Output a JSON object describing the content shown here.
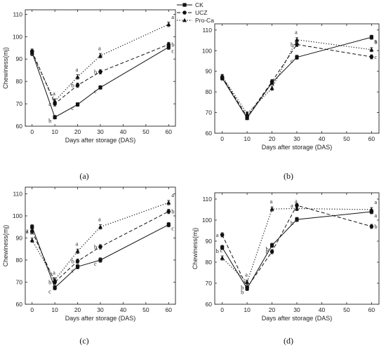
{
  "legend": [
    {
      "name": "CK",
      "dash": "solid",
      "marker": "square"
    },
    {
      "name": "UCZ",
      "dash": "dashed",
      "marker": "circle"
    },
    {
      "name": "Pro-Ca",
      "dash": "dotted",
      "marker": "triangle"
    }
  ],
  "chart_data": [
    {
      "panel_label": "(a)",
      "type": "line",
      "xlabel": "Days after storage (DAS)",
      "ylabel": "Chewiness(mj)",
      "xlim": [
        -3,
        63
      ],
      "ylim": [
        60,
        112
      ],
      "xticks": [
        0,
        10,
        20,
        30,
        40,
        50,
        60
      ],
      "yticks": [
        60,
        70,
        80,
        90,
        100,
        110
      ],
      "x": [
        0,
        10,
        20,
        30,
        60
      ],
      "series": [
        {
          "name": "CK",
          "values": [
            93.0,
            64.0,
            69.7,
            77.3,
            95.3
          ],
          "errors": [
            1.0,
            0.8,
            0.8,
            0.8,
            1.0
          ],
          "letters": [
            "",
            "b",
            "c",
            "c",
            "c"
          ]
        },
        {
          "name": "UCZ",
          "values": [
            93.5,
            70.0,
            78.3,
            84.3,
            96.5
          ],
          "errors": [
            1.0,
            1.0,
            1.0,
            1.0,
            1.0
          ],
          "letters": [
            "",
            "a",
            "b",
            "b",
            "b"
          ]
        },
        {
          "name": "Pro-Ca",
          "values": [
            92.5,
            71.2,
            82.0,
            91.5,
            105.5
          ],
          "errors": [
            1.0,
            1.0,
            1.0,
            1.0,
            1.0
          ],
          "letters": [
            "",
            "a",
            "a",
            "a",
            "a"
          ]
        }
      ]
    },
    {
      "panel_label": "(b)",
      "type": "line",
      "xlabel": "Days after storage (DAS)",
      "ylabel": "",
      "xlim": [
        -3,
        63
      ],
      "ylim": [
        60,
        113
      ],
      "xticks": [
        0,
        10,
        20,
        30,
        40,
        50,
        60
      ],
      "yticks": [
        60,
        70,
        80,
        90,
        100,
        110
      ],
      "x": [
        0,
        10,
        20,
        30,
        60
      ],
      "series": [
        {
          "name": "CK",
          "values": [
            86.7,
            67.3,
            84.5,
            96.8,
            106.5
          ],
          "errors": [
            1.0,
            0.8,
            1.0,
            1.0,
            1.0
          ],
          "letters": [
            "",
            "",
            "",
            "c",
            "a"
          ]
        },
        {
          "name": "UCZ",
          "values": [
            87.2,
            68.0,
            85.0,
            103.0,
            97.0
          ],
          "errors": [
            1.0,
            0.8,
            1.0,
            1.0,
            1.0
          ],
          "letters": [
            "",
            "",
            "",
            "b",
            "c"
          ]
        },
        {
          "name": "Pro-Ca",
          "values": [
            87.5,
            69.5,
            81.8,
            105.3,
            100.5
          ],
          "errors": [
            1.0,
            0.8,
            1.0,
            1.0,
            1.0
          ],
          "letters": [
            "",
            "",
            "",
            "a",
            "b"
          ]
        }
      ]
    },
    {
      "panel_label": "(c)",
      "type": "line",
      "xlabel": "Days after storage (DAS)",
      "ylabel": "Chewiness(mj)",
      "xlim": [
        -3,
        63
      ],
      "ylim": [
        60,
        113
      ],
      "xticks": [
        0,
        10,
        20,
        30,
        40,
        50,
        60
      ],
      "yticks": [
        60,
        70,
        80,
        90,
        100,
        110
      ],
      "x": [
        0,
        10,
        20,
        30,
        60
      ],
      "series": [
        {
          "name": "CK",
          "values": [
            95.0,
            67.5,
            77.0,
            80.0,
            96.0
          ],
          "errors": [
            1.0,
            1.0,
            1.0,
            1.0,
            1.0
          ],
          "letters": [
            "a",
            "c",
            "c",
            "c",
            "c"
          ]
        },
        {
          "name": "UCZ",
          "values": [
            93.0,
            70.0,
            79.5,
            86.0,
            102.0
          ],
          "errors": [
            1.0,
            1.0,
            1.0,
            1.0,
            1.0
          ],
          "letters": [
            "a",
            "b",
            "b",
            "b",
            "b"
          ]
        },
        {
          "name": "Pro-Ca",
          "values": [
            89.0,
            71.0,
            84.0,
            95.0,
            106.0
          ],
          "errors": [
            1.0,
            1.0,
            1.0,
            1.0,
            1.0
          ],
          "letters": [
            "b",
            "a",
            "a",
            "a",
            "a"
          ]
        }
      ]
    },
    {
      "panel_label": "(d)",
      "type": "line",
      "xlabel": "Days after storage (DAS)",
      "ylabel": "Chewiness(mj)",
      "xlim": [
        -3,
        63
      ],
      "ylim": [
        60,
        113
      ],
      "xticks": [
        0,
        10,
        20,
        30,
        40,
        50,
        60
      ],
      "yticks": [
        60,
        70,
        80,
        90,
        100,
        110
      ],
      "x": [
        0,
        10,
        20,
        30,
        60
      ],
      "series": [
        {
          "name": "CK",
          "values": [
            87.0,
            67.5,
            88.0,
            100.3,
            104.0
          ],
          "errors": [
            1.0,
            1.0,
            1.0,
            1.0,
            1.0
          ],
          "letters": [
            "b",
            "b",
            "b",
            "b",
            "a"
          ]
        },
        {
          "name": "UCZ",
          "values": [
            93.0,
            68.0,
            85.0,
            107.0,
            97.0
          ],
          "errors": [
            1.0,
            1.0,
            1.0,
            1.0,
            1.0
          ],
          "letters": [
            "a",
            "b",
            "c",
            "a",
            "b"
          ]
        },
        {
          "name": "Pro-Ca",
          "values": [
            82.0,
            70.5,
            105.3,
            105.5,
            105.0
          ],
          "errors": [
            1.0,
            1.0,
            1.0,
            1.0,
            1.0
          ],
          "letters": [
            "c",
            "a",
            "a",
            "a",
            "a"
          ]
        }
      ]
    }
  ]
}
